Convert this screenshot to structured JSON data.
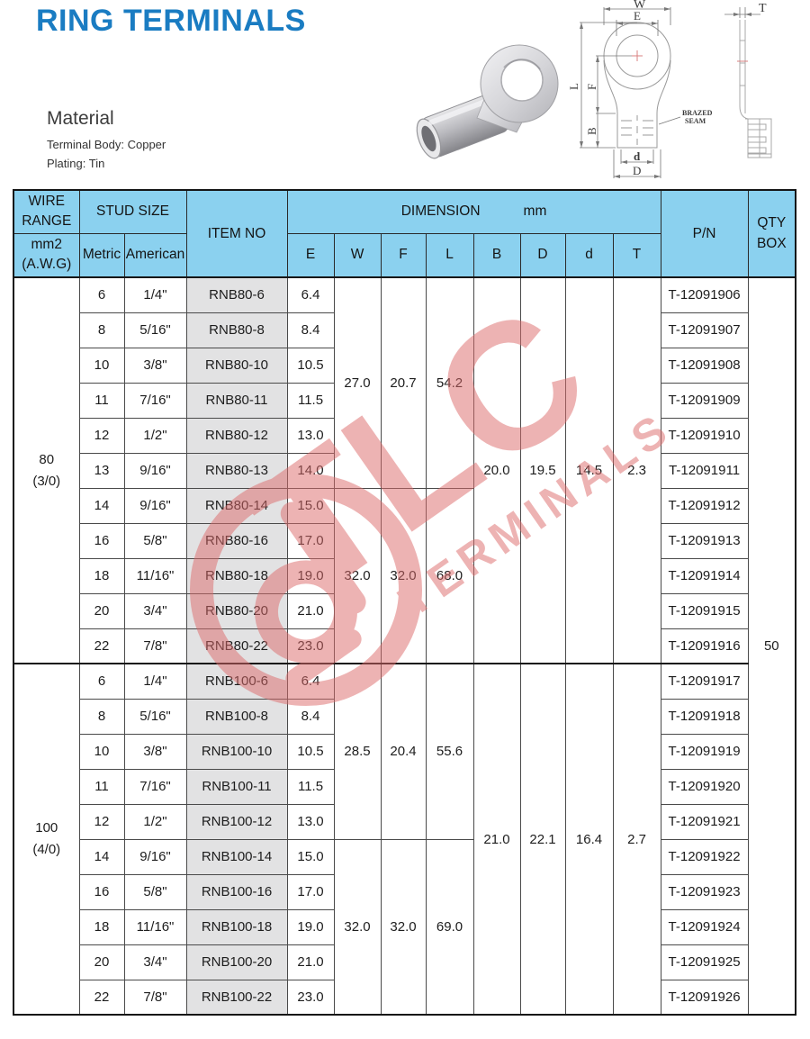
{
  "page": {
    "title": "RING TERMINALS"
  },
  "material": {
    "heading": "Material",
    "line1": "Terminal Body: Copper",
    "line2": "Plating: Tin"
  },
  "drawing": {
    "w": "W",
    "e": "E",
    "l": "L",
    "f": "F",
    "b": "B",
    "d_small": "d",
    "d_big": "D",
    "t": "T",
    "brazed_line1": "BRAZED",
    "brazed_line2": "SEAM"
  },
  "watermark": {
    "line1": "TLC",
    "line2": "TERMINALS",
    "color": "#dd6a6a"
  },
  "colors": {
    "header_blue": "#8bd1ef",
    "item_gray": "#e2e2e3",
    "title_blue": "#1a7cc2",
    "watermark_red": "#dd6a6a"
  },
  "table": {
    "header": {
      "wire_range": "WIRE\nRANGE",
      "wire_range_sub": "mm2\n(A.W.G)",
      "stud_size": "STUD SIZE",
      "metric": "Metric",
      "american": "American",
      "item_no": "ITEM NO",
      "dimension": "DIMENSION",
      "dimension_unit": "mm",
      "dims": [
        "E",
        "W",
        "F",
        "L",
        "B",
        "D",
        "d",
        "T"
      ],
      "pn": "P/N",
      "qty_box": "QTY\nBOX"
    },
    "qty_box_value": "50",
    "groups": [
      {
        "wire_range": "80\n(3/0)",
        "dim_b": "20.0",
        "dim_D": "19.5",
        "dim_d": "14.5",
        "dim_t": "2.3",
        "wfl_spans": [
          {
            "rows": 6,
            "w": "27.0",
            "f": "20.7",
            "l": "54.2"
          },
          {
            "rows": 5,
            "w": "32.0",
            "f": "32.0",
            "l": "68.0"
          }
        ],
        "rows": [
          {
            "metric": "6",
            "american": "1/4\"",
            "item": "RNB80-6",
            "e": "6.4",
            "pn": "T-12091906"
          },
          {
            "metric": "8",
            "american": "5/16\"",
            "item": "RNB80-8",
            "e": "8.4",
            "pn": "T-12091907"
          },
          {
            "metric": "10",
            "american": "3/8\"",
            "item": "RNB80-10",
            "e": "10.5",
            "pn": "T-12091908"
          },
          {
            "metric": "11",
            "american": "7/16\"",
            "item": "RNB80-11",
            "e": "11.5",
            "pn": "T-12091909"
          },
          {
            "metric": "12",
            "american": "1/2\"",
            "item": "RNB80-12",
            "e": "13.0",
            "pn": "T-12091910"
          },
          {
            "metric": "13",
            "american": "9/16\"",
            "item": "RNB80-13",
            "e": "14.0",
            "pn": "T-12091911"
          },
          {
            "metric": "14",
            "american": "9/16\"",
            "item": "RNB80-14",
            "e": "15.0",
            "pn": "T-12091912"
          },
          {
            "metric": "16",
            "american": "5/8\"",
            "item": "RNB80-16",
            "e": "17.0",
            "pn": "T-12091913"
          },
          {
            "metric": "18",
            "american": "11/16\"",
            "item": "RNB80-18",
            "e": "19.0",
            "pn": "T-12091914"
          },
          {
            "metric": "20",
            "american": "3/4\"",
            "item": "RNB80-20",
            "e": "21.0",
            "pn": "T-12091915"
          },
          {
            "metric": "22",
            "american": "7/8\"",
            "item": "RNB80-22",
            "e": "23.0",
            "pn": "T-12091916"
          }
        ]
      },
      {
        "wire_range": "100\n(4/0)",
        "dim_b": "21.0",
        "dim_D": "22.1",
        "dim_d": "16.4",
        "dim_t": "2.7",
        "wfl_spans": [
          {
            "rows": 5,
            "w": "28.5",
            "f": "20.4",
            "l": "55.6"
          },
          {
            "rows": 5,
            "w": "32.0",
            "f": "32.0",
            "l": "69.0"
          }
        ],
        "rows": [
          {
            "metric": "6",
            "american": "1/4\"",
            "item": "RNB100-6",
            "e": "6.4",
            "pn": "T-12091917"
          },
          {
            "metric": "8",
            "american": "5/16\"",
            "item": "RNB100-8",
            "e": "8.4",
            "pn": "T-12091918"
          },
          {
            "metric": "10",
            "american": "3/8\"",
            "item": "RNB100-10",
            "e": "10.5",
            "pn": "T-12091919"
          },
          {
            "metric": "11",
            "american": "7/16\"",
            "item": "RNB100-11",
            "e": "11.5",
            "pn": "T-12091920"
          },
          {
            "metric": "12",
            "american": "1/2\"",
            "item": "RNB100-12",
            "e": "13.0",
            "pn": "T-12091921"
          },
          {
            "metric": "14",
            "american": "9/16\"",
            "item": "RNB100-14",
            "e": "15.0",
            "pn": "T-12091922"
          },
          {
            "metric": "16",
            "american": "5/8\"",
            "item": "RNB100-16",
            "e": "17.0",
            "pn": "T-12091923"
          },
          {
            "metric": "18",
            "american": "11/16\"",
            "item": "RNB100-18",
            "e": "19.0",
            "pn": "T-12091924"
          },
          {
            "metric": "20",
            "american": "3/4\"",
            "item": "RNB100-20",
            "e": "21.0",
            "pn": "T-12091925"
          },
          {
            "metric": "22",
            "american": "7/8\"",
            "item": "RNB100-22",
            "e": "23.0",
            "pn": "T-12091926"
          }
        ]
      }
    ]
  }
}
